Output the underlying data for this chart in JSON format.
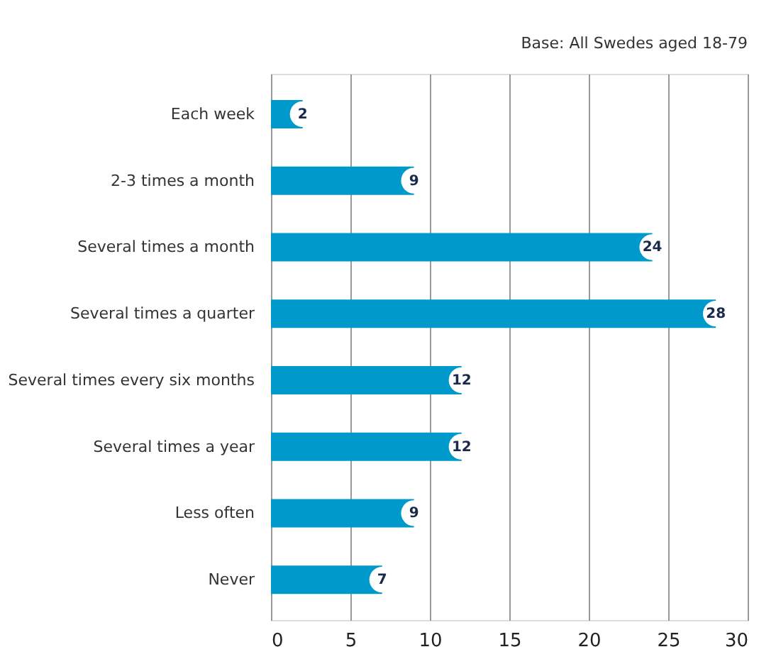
{
  "chart_data": {
    "type": "bar",
    "orientation": "horizontal",
    "categories": [
      "Each week",
      "2-3 times a month",
      "Several times a month",
      "Several times a quarter",
      "Several times every six months",
      "Several times a year",
      "Less often",
      "Never"
    ],
    "values": [
      2,
      9,
      24,
      28,
      12,
      12,
      9,
      7
    ],
    "color": "#0099cc",
    "xlim": [
      0,
      30
    ],
    "xticks": [
      0,
      5,
      10,
      15,
      20,
      25,
      30
    ],
    "grid": "x",
    "data_labels": true,
    "annotations": [
      "Base: All Swedes aged 18-79"
    ]
  }
}
